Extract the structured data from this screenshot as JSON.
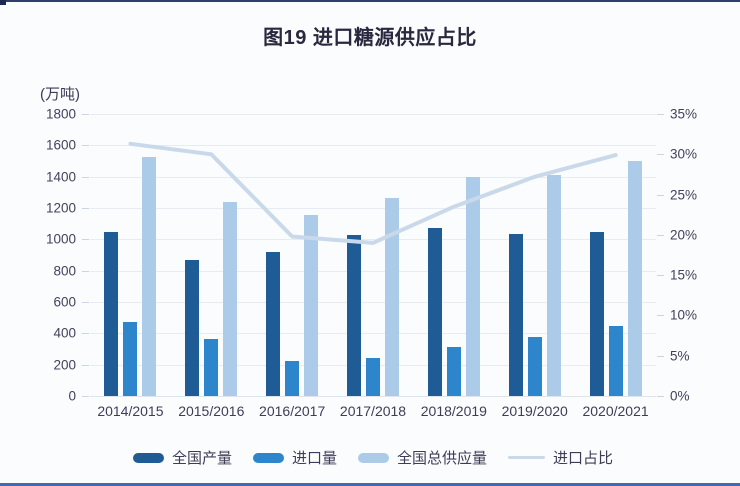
{
  "page": {
    "title": "图19  进口糖源供应占比",
    "unit_label": "(万吨)"
  },
  "chart_data": {
    "type": "bar",
    "title": "图19 进口糖源供应占比",
    "categories": [
      "2014/2015",
      "2015/2016",
      "2016/2017",
      "2017/2018",
      "2018/2019",
      "2019/2020",
      "2020/2021"
    ],
    "series": [
      {
        "name": "全国产量",
        "type": "bar",
        "axis": "left",
        "color": "#1f5c95",
        "values": [
          1050,
          865,
          920,
          1030,
          1070,
          1035,
          1050
        ]
      },
      {
        "name": "进口量",
        "type": "bar",
        "axis": "left",
        "color": "#2d85cb",
        "values": [
          475,
          365,
          225,
          245,
          315,
          375,
          450
        ]
      },
      {
        "name": "全国总供应量",
        "type": "bar",
        "axis": "left",
        "color": "#abcbe8",
        "values": [
          1525,
          1240,
          1155,
          1265,
          1395,
          1410,
          1500
        ]
      },
      {
        "name": "进口占比",
        "type": "line",
        "axis": "right",
        "color": "#c9d9e9",
        "values": [
          31.3,
          30.0,
          19.8,
          19.0,
          23.5,
          27.2,
          29.9
        ]
      }
    ],
    "left_axis": {
      "label": "(万吨)",
      "min": 0,
      "max": 1800,
      "ticks": [
        "0",
        "200",
        "400",
        "600",
        "800",
        "1000",
        "1200",
        "1400",
        "1600",
        "1800"
      ]
    },
    "right_axis": {
      "label": "%",
      "min": 0,
      "max": 35,
      "ticks": [
        "0%",
        "5%",
        "10%",
        "15%",
        "20%",
        "25%",
        "30%",
        "35%"
      ]
    },
    "grid": true,
    "legend_position": "bottom"
  },
  "colors": {
    "background": "#fbfcfe",
    "gridline": "#e7ecf4",
    "axis_text": "#42425e",
    "title_text": "#28283e",
    "top_border": "#2e3f6d",
    "bottom_border": "#3f6cb0"
  }
}
